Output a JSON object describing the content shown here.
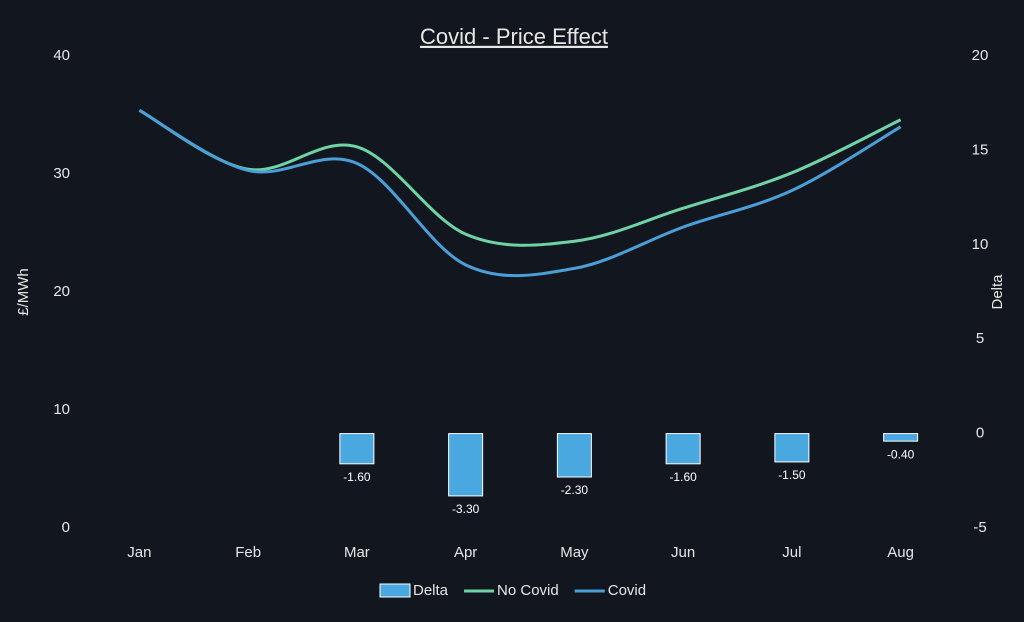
{
  "chart_data": {
    "type": "bar-line",
    "title": "Covid - Price Effect",
    "y_label": "£/MWh",
    "y2_label": "Delta",
    "categories": [
      "Jan",
      "Feb",
      "Mar",
      "Apr",
      "May",
      "Jun",
      "Jul",
      "Aug"
    ],
    "series": [
      {
        "name": "Delta",
        "type": "bar",
        "axis": "y2",
        "color": "#4aa8e0",
        "values": [
          null,
          null,
          -1.6,
          -3.3,
          -2.3,
          -1.6,
          -1.5,
          -0.4
        ],
        "value_labels": [
          null,
          null,
          "-1.60",
          "-3.30",
          "-2.30",
          "-1.60",
          "-1.50",
          "-0.40"
        ]
      },
      {
        "name": "No Covid",
        "type": "line",
        "color": "#6fd3a5",
        "values": [
          35.4,
          30.4,
          32.3,
          24.9,
          24.3,
          27.1,
          30.1,
          34.6
        ]
      },
      {
        "name": "Covid",
        "type": "line",
        "color": "#4a9fd8",
        "values": [
          35.4,
          30.3,
          30.9,
          22.3,
          22.0,
          25.5,
          28.6,
          34.0
        ]
      }
    ],
    "ylim": [
      0,
      40
    ],
    "yticks": [
      0,
      10,
      20,
      30,
      40
    ],
    "y2lim": [
      -5,
      20
    ],
    "y2ticks": [
      -5,
      0,
      5,
      10,
      15,
      20
    ]
  }
}
